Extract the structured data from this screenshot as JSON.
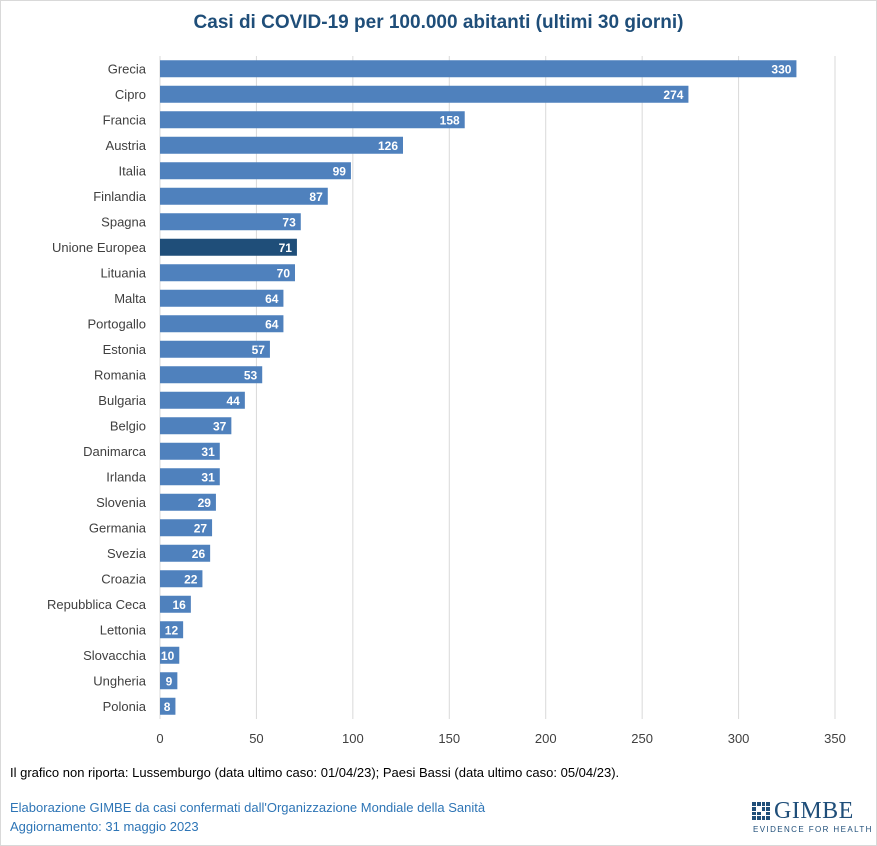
{
  "chart_data": {
    "type": "bar",
    "orientation": "horizontal",
    "title": "Casi di COVID-19 per 100.000 abitanti (ultimi 30 giorni)",
    "categories": [
      "Grecia",
      "Cipro",
      "Francia",
      "Austria",
      "Italia",
      "Finlandia",
      "Spagna",
      "Unione Europea",
      "Lituania",
      "Malta",
      "Portogallo",
      "Estonia",
      "Romania",
      "Bulgaria",
      "Belgio",
      "Danimarca",
      "Irlanda",
      "Slovenia",
      "Germania",
      "Svezia",
      "Croazia",
      "Repubblica Ceca",
      "Lettonia",
      "Slovacchia",
      "Ungheria",
      "Polonia"
    ],
    "values": [
      330,
      274,
      158,
      126,
      99,
      87,
      73,
      71,
      70,
      64,
      64,
      57,
      53,
      44,
      37,
      31,
      31,
      29,
      27,
      26,
      22,
      16,
      12,
      10,
      9,
      8
    ],
    "highlight": "Unione Europea",
    "xlim": [
      0,
      350
    ],
    "xticks": [
      0,
      50,
      100,
      150,
      200,
      250,
      300,
      350
    ],
    "grid": true,
    "legend": "none",
    "colors": {
      "bar": "#4f81bd",
      "highlight": "#1f4e79",
      "grid": "#d9d9d9",
      "label": "#ffffff"
    }
  },
  "footnote": "Il grafico non riporta: Lussemburgo (data ultimo caso: 01/04/23); Paesi Bassi (data ultimo caso: 05/04/23).",
  "source_line": "Elaborazione GIMBE da casi confermati dall'Organizzazione Mondiale della Sanità",
  "update_line": "Aggiornamento: 31 maggio 2023",
  "logo": {
    "word": "GIMBE",
    "tagline": "EVIDENCE FOR HEALTH"
  }
}
